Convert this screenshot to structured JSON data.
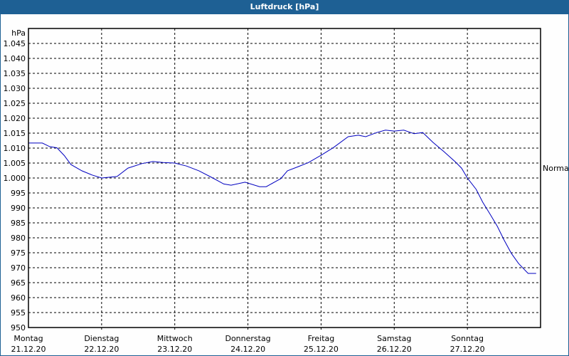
{
  "window": {
    "title": "Luftdruck [hPa]"
  },
  "chart_data": {
    "type": "line",
    "title": "Luftdruck [hPa]",
    "xlabel": "",
    "ylabel": "hPa",
    "ylim": [
      950,
      1050
    ],
    "yticks": [
      950,
      955,
      960,
      965,
      970,
      975,
      980,
      985,
      990,
      995,
      1000,
      1005,
      1010,
      1015,
      1020,
      1025,
      1030,
      1035,
      1040,
      1045
    ],
    "ytick_labels": [
      "950",
      "955",
      "960",
      "965",
      "970",
      "975",
      "980",
      "985",
      "990",
      "995",
      "1.000",
      "1.005",
      "1.010",
      "1.015",
      "1.020",
      "1.025",
      "1.030",
      "1.035",
      "1.040",
      "1.045"
    ],
    "categories": [
      {
        "day": "Montag",
        "date": "21.12.20"
      },
      {
        "day": "Dienstag",
        "date": "22.12.20"
      },
      {
        "day": "Mittwoch",
        "date": "23.12.20"
      },
      {
        "day": "Donnerstag",
        "date": "24.12.20"
      },
      {
        "day": "Freitag",
        "date": "25.12.20"
      },
      {
        "day": "Samstag",
        "date": "26.12.20"
      },
      {
        "day": "Sonntag",
        "date": "27.12.20"
      }
    ],
    "grid": true,
    "reference_line": {
      "label": "Normal",
      "value": 1003.3
    },
    "series": [
      {
        "name": "Luftdruck",
        "color": "#0000c0",
        "x_days": [
          0,
          0.19,
          0.29,
          0.39,
          0.49,
          0.58,
          0.73,
          0.87,
          1.0,
          1.21,
          1.36,
          1.55,
          1.7,
          1.84,
          2.0,
          2.16,
          2.33,
          2.52,
          2.67,
          2.77,
          2.96,
          3.16,
          3.25,
          3.45,
          3.54,
          3.69,
          3.83,
          4.0,
          4.17,
          4.37,
          4.51,
          4.61,
          4.76,
          4.88,
          5.0,
          5.13,
          5.27,
          5.39,
          5.53,
          5.68,
          5.83,
          5.92,
          6.0,
          6.12,
          6.21,
          6.31,
          6.41,
          6.5,
          6.6,
          6.7,
          6.83,
          6.94
        ],
        "values": [
          1011.7,
          1011.7,
          1010.5,
          1010.1,
          1007.5,
          1004.5,
          1002.4,
          1001.0,
          1000.0,
          1000.5,
          1003.3,
          1004.8,
          1005.5,
          1005.2,
          1005.0,
          1004.0,
          1002.4,
          1000.0,
          998.0,
          997.6,
          998.6,
          997.1,
          997.1,
          999.8,
          1002.4,
          1003.8,
          1005.2,
          1007.6,
          1010.2,
          1013.8,
          1014.3,
          1013.8,
          1015.2,
          1016.0,
          1015.7,
          1016.0,
          1014.8,
          1015.2,
          1011.9,
          1008.8,
          1005.5,
          1003.3,
          1000.0,
          996.2,
          991.9,
          987.9,
          983.8,
          979.3,
          974.8,
          971.4,
          968.1,
          968.1
        ]
      }
    ]
  },
  "colors": {
    "titlebar": "#1e6094",
    "line": "#0000c0",
    "grid": "#000000"
  }
}
